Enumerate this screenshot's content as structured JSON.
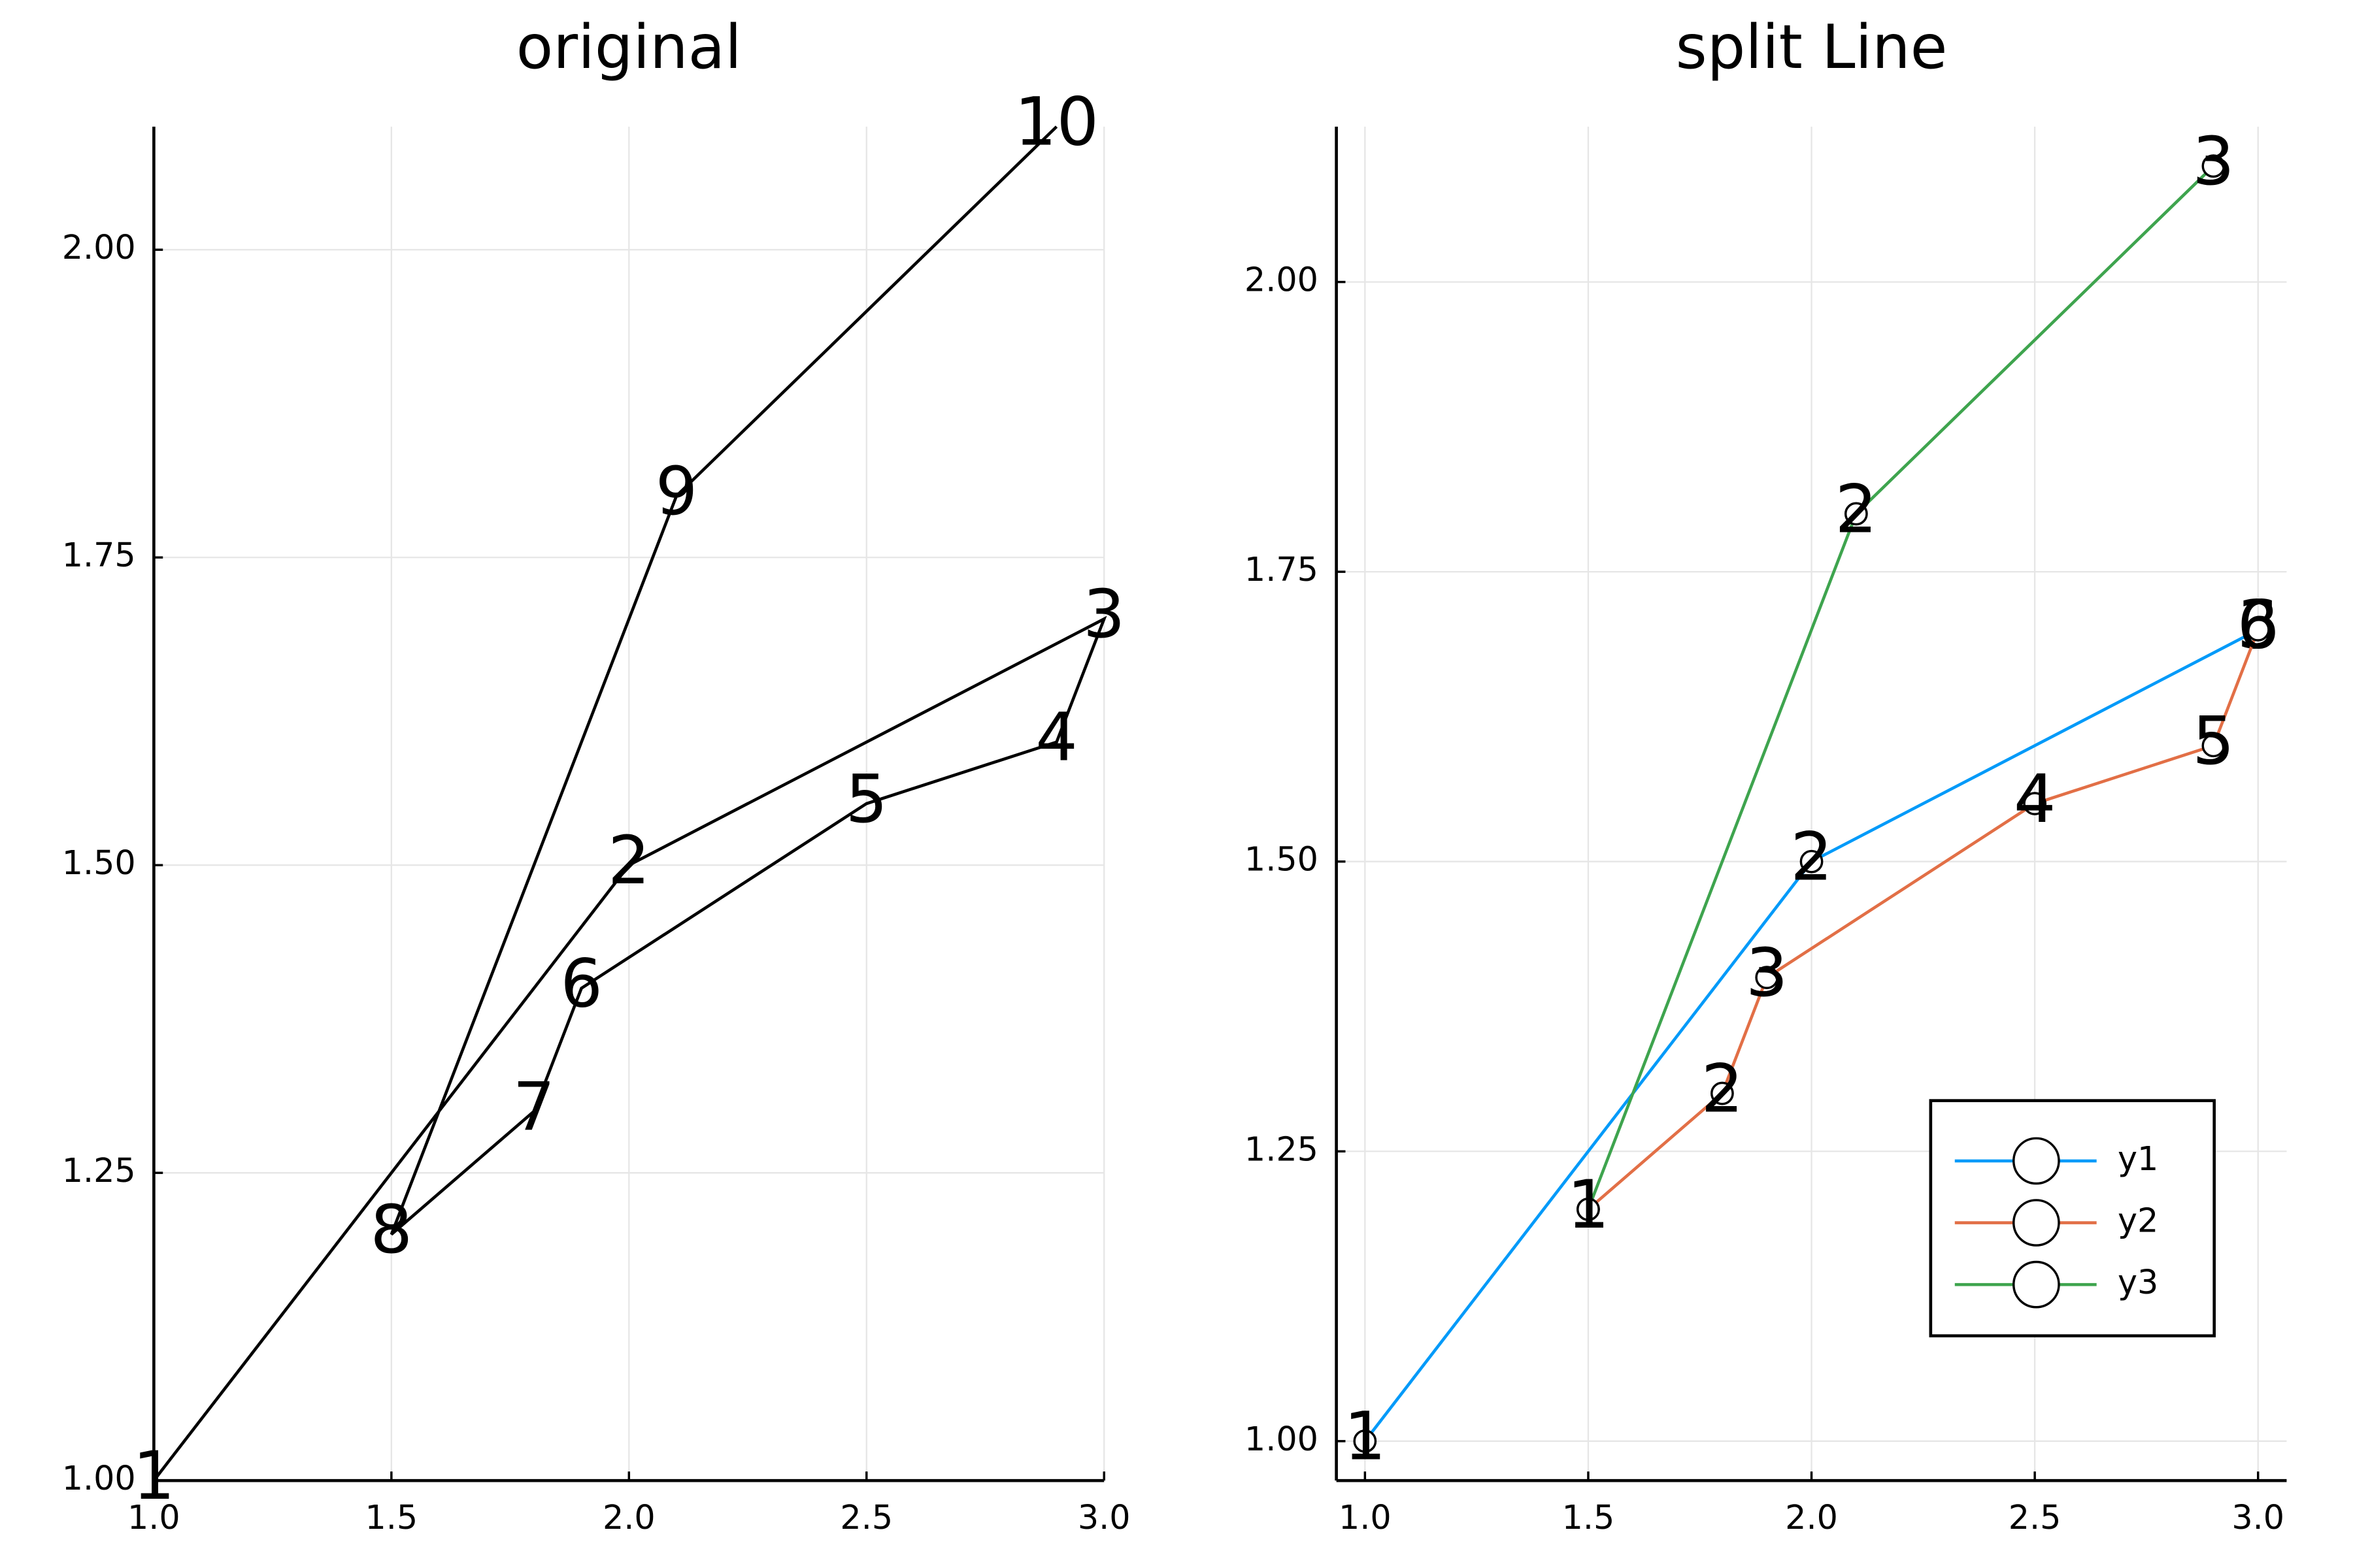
{
  "chart_data": [
    {
      "type": "line",
      "title": "original",
      "xlim": [
        1,
        3
      ],
      "ylim": [
        1,
        2.1
      ],
      "xticks": [
        {
          "value": 1,
          "label": "1.0"
        },
        {
          "value": 1.5,
          "label": "1.5"
        },
        {
          "value": 2,
          "label": "2.0"
        },
        {
          "value": 2.5,
          "label": "2.5"
        },
        {
          "value": 3,
          "label": "3.0"
        }
      ],
      "yticks": [
        {
          "value": 1,
          "label": "1.00"
        },
        {
          "value": 1.25,
          "label": "1.25"
        },
        {
          "value": 1.5,
          "label": "1.50"
        },
        {
          "value": 1.75,
          "label": "1.75"
        },
        {
          "value": 2,
          "label": "2.00"
        }
      ],
      "grid": true,
      "markers": false,
      "series": [
        {
          "color": "#000000",
          "x": [
            1.0,
            2.0,
            3.0,
            2.9,
            2.5,
            1.9,
            1.8,
            1.5,
            2.1,
            2.9
          ],
          "values": [
            1.0,
            1.5,
            1.7,
            1.6,
            1.55,
            1.4,
            1.3,
            1.2,
            1.8,
            2.1
          ],
          "labels": [
            1,
            2,
            3,
            4,
            5,
            6,
            7,
            8,
            9,
            10
          ]
        }
      ]
    },
    {
      "type": "line",
      "title": "split Line",
      "xlim": [
        0.936,
        3.064
      ],
      "ylim": [
        0.966,
        2.134
      ],
      "xticks": [
        {
          "value": 1,
          "label": "1.0"
        },
        {
          "value": 1.5,
          "label": "1.5"
        },
        {
          "value": 2,
          "label": "2.0"
        },
        {
          "value": 2.5,
          "label": "2.5"
        },
        {
          "value": 3,
          "label": "3.0"
        }
      ],
      "yticks": [
        {
          "value": 1,
          "label": "1.00"
        },
        {
          "value": 1.25,
          "label": "1.25"
        },
        {
          "value": 1.5,
          "label": "1.50"
        },
        {
          "value": 1.75,
          "label": "1.75"
        },
        {
          "value": 2,
          "label": "2.00"
        }
      ],
      "grid": true,
      "markers": true,
      "legend": "bottom right",
      "series": [
        {
          "name": "y1",
          "color": "#009af9",
          "x": [
            1.0,
            2.0,
            3.0
          ],
          "values": [
            1.0,
            1.5,
            1.7
          ],
          "labels": [
            1,
            2,
            3
          ]
        },
        {
          "name": "y2",
          "color": "#e26f46",
          "x": [
            1.5,
            1.8,
            1.9,
            2.5,
            2.9,
            3.0
          ],
          "values": [
            1.2,
            1.3,
            1.4,
            1.55,
            1.6,
            1.7
          ],
          "labels": [
            1,
            2,
            3,
            4,
            5,
            6
          ]
        },
        {
          "name": "y3",
          "color": "#3ea44e",
          "x": [
            1.5,
            2.1,
            2.9
          ],
          "values": [
            1.2,
            1.8,
            2.1
          ],
          "labels": [
            1,
            2,
            3
          ]
        }
      ]
    }
  ]
}
